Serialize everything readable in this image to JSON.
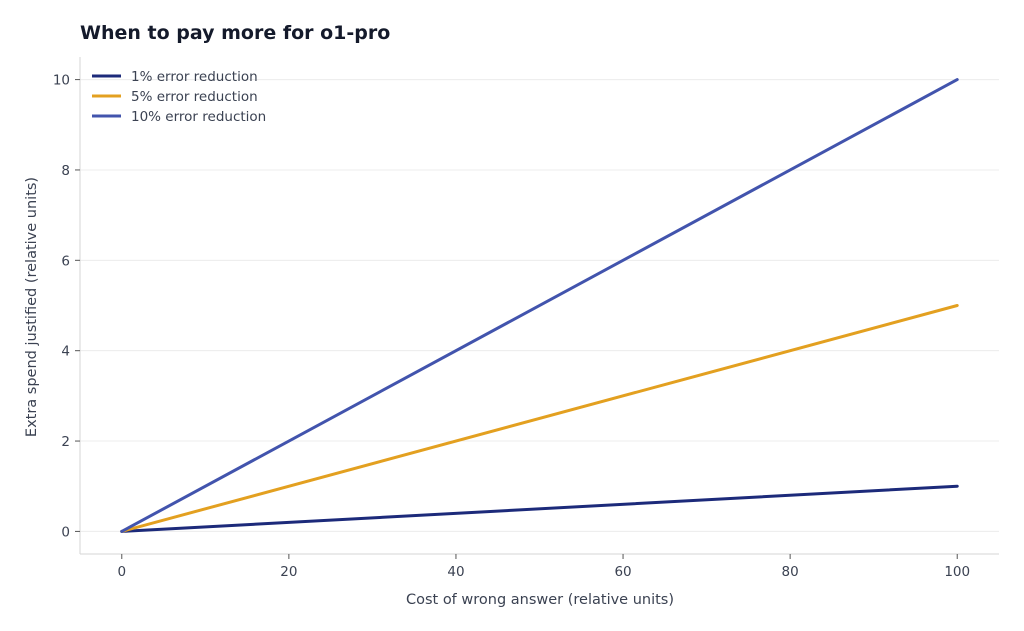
{
  "chart_data": {
    "type": "line",
    "title": "When to pay more for o1-pro",
    "xlabel": "Cost of wrong answer (relative units)",
    "ylabel": "Extra spend justified (relative units)",
    "xlim": [
      -5,
      105
    ],
    "ylim": [
      -0.5,
      10.5
    ],
    "xticks": [
      0,
      20,
      40,
      60,
      80,
      100
    ],
    "yticks": [
      0,
      2,
      4,
      6,
      8,
      10
    ],
    "grid": "horizontal",
    "legend_position": "top-left",
    "series": [
      {
        "name": "1% error reduction",
        "color": "#1c2a7a",
        "x": [
          0,
          100
        ],
        "y": [
          0,
          1
        ]
      },
      {
        "name": "5% error reduction",
        "color": "#e3a020",
        "x": [
          0,
          100
        ],
        "y": [
          0,
          5
        ]
      },
      {
        "name": "10% error reduction",
        "color": "#4254ad",
        "x": [
          0,
          100
        ],
        "y": [
          0,
          10
        ]
      }
    ]
  }
}
